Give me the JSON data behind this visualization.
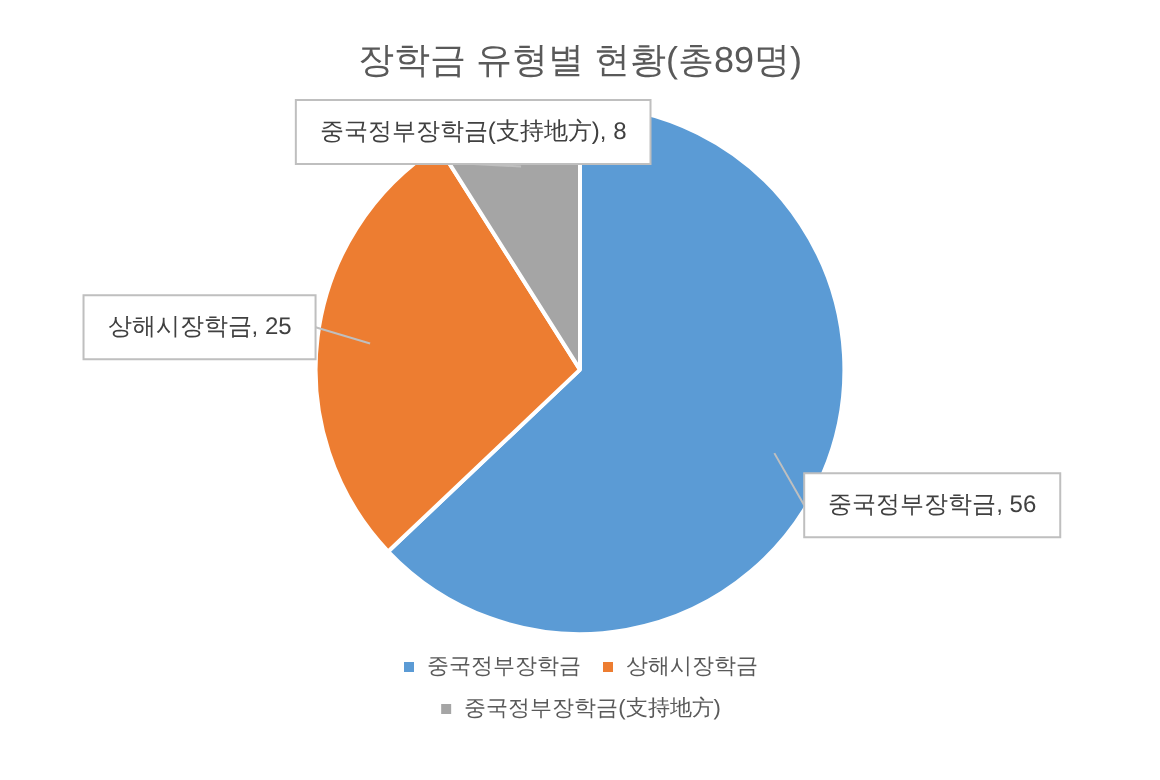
{
  "chart_data": {
    "type": "pie",
    "title": "장학금 유형별 현황(총89명)",
    "categories": [
      "중국정부장학금",
      "상해시장학금",
      "중국정부장학금(支持地方)"
    ],
    "values": [
      56,
      25,
      8
    ],
    "colors": [
      "#5b9bd5",
      "#ed7d31",
      "#a5a5a5"
    ],
    "value_labels": [
      "중국정부장학금, 56",
      "상해시장학금, 25",
      "중국정부장학금(支持地方), 8"
    ],
    "legend": "bottom"
  }
}
